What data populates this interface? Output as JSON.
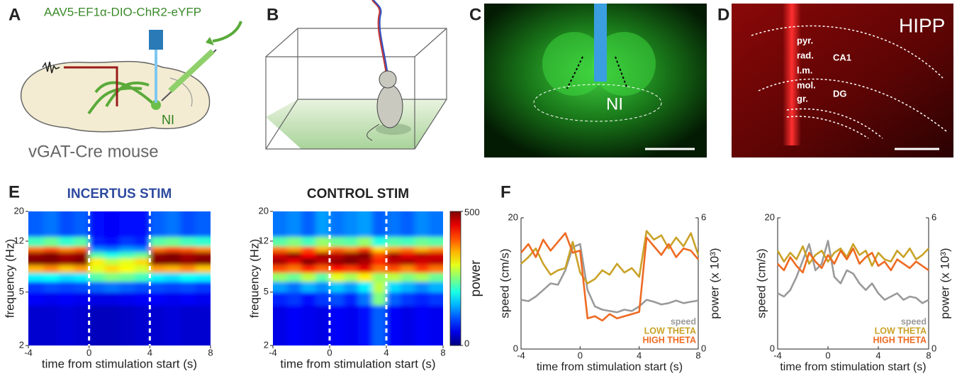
{
  "panels": {
    "A": {
      "label": "A",
      "construct": "AAV5-EF1α-DIO-ChR2-eYFP",
      "region": "NI",
      "mouse": "vGAT-Cre mouse"
    },
    "B": {
      "label": "B"
    },
    "C": {
      "label": "C",
      "region": "NI"
    },
    "D": {
      "label": "D",
      "region": "HIPP",
      "layers": [
        "pyr.",
        "rad.",
        "l.m.",
        "mol.",
        "gr."
      ],
      "areas": [
        "CA1",
        "DG"
      ]
    },
    "E": {
      "label": "E"
    },
    "F": {
      "label": "F"
    }
  },
  "chart_data": [
    {
      "type": "heatmap",
      "title": "INCERTUS STIM",
      "title_color": "#2e4a9e",
      "colormap": "jet",
      "x_label": "time from stimulation start (s)",
      "y_label": "frequency (Hz)",
      "xlim": [
        -4,
        8
      ],
      "xticks": [
        -4,
        0,
        4,
        8
      ],
      "ylim": [
        2,
        20
      ],
      "yticks": [
        2,
        5,
        12,
        20
      ],
      "log_y": true,
      "vlines": [
        0,
        4
      ],
      "zlim": [
        0,
        500
      ],
      "colorbar": false,
      "xbins": [
        -4,
        -3,
        -2,
        -1,
        0,
        1,
        2,
        3,
        4,
        5,
        6,
        7,
        8
      ],
      "ybins": [
        2,
        4,
        5,
        6,
        7,
        8,
        9,
        10,
        11,
        13,
        20
      ],
      "values": [
        [
          40,
          40,
          45,
          40,
          30,
          30,
          35,
          40,
          40,
          45,
          40,
          40
        ],
        [
          60,
          55,
          60,
          55,
          50,
          50,
          55,
          60,
          60,
          55,
          60,
          55
        ],
        [
          90,
          100,
          95,
          100,
          110,
          120,
          110,
          100,
          100,
          95,
          100,
          90
        ],
        [
          180,
          190,
          170,
          180,
          230,
          250,
          240,
          220,
          180,
          170,
          190,
          180
        ],
        [
          350,
          370,
          340,
          360,
          300,
          330,
          310,
          290,
          360,
          350,
          370,
          340
        ],
        [
          500,
          500,
          490,
          500,
          320,
          280,
          300,
          330,
          500,
          500,
          490,
          500
        ],
        [
          490,
          500,
          480,
          490,
          230,
          200,
          220,
          240,
          490,
          500,
          480,
          490
        ],
        [
          380,
          400,
          370,
          390,
          130,
          120,
          140,
          130,
          380,
          400,
          390,
          370
        ],
        [
          220,
          240,
          210,
          230,
          80,
          70,
          90,
          80,
          230,
          240,
          220,
          210
        ],
        [
          110,
          120,
          100,
          110,
          70,
          60,
          70,
          70,
          110,
          120,
          100,
          110
        ]
      ]
    },
    {
      "type": "heatmap",
      "title": "CONTROL STIM",
      "title_color": "#222222",
      "colormap": "jet",
      "x_label": "time from stimulation start (s)",
      "y_label": "frequency (Hz)",
      "xlim": [
        -4,
        8
      ],
      "xticks": [
        -4,
        0,
        4,
        8
      ],
      "ylim": [
        2,
        20
      ],
      "yticks": [
        2,
        5,
        12,
        20
      ],
      "log_y": true,
      "vlines": [
        0,
        4
      ],
      "zlim": [
        0,
        500
      ],
      "zticks": [
        0,
        500
      ],
      "zlabel": "power",
      "colorbar": true,
      "xbins": [
        -4,
        -3,
        -2,
        -1,
        0,
        1,
        2,
        3,
        4,
        5,
        6,
        7,
        8
      ],
      "ybins": [
        2,
        4,
        5,
        6,
        7,
        8,
        9,
        10,
        11,
        13,
        20
      ],
      "values": [
        [
          50,
          60,
          55,
          50,
          60,
          55,
          70,
          110,
          60,
          50,
          60,
          55
        ],
        [
          80,
          90,
          70,
          90,
          100,
          80,
          120,
          250,
          110,
          90,
          80,
          90
        ],
        [
          140,
          120,
          150,
          130,
          160,
          140,
          180,
          280,
          170,
          150,
          130,
          150
        ],
        [
          260,
          240,
          280,
          230,
          300,
          270,
          320,
          260,
          280,
          250,
          270,
          240
        ],
        [
          400,
          380,
          420,
          390,
          430,
          410,
          450,
          380,
          400,
          370,
          410,
          380
        ],
        [
          480,
          450,
          500,
          470,
          490,
          500,
          480,
          420,
          470,
          480,
          460,
          470
        ],
        [
          460,
          490,
          440,
          480,
          470,
          490,
          500,
          400,
          480,
          450,
          470,
          460
        ],
        [
          380,
          360,
          400,
          350,
          390,
          370,
          410,
          330,
          360,
          380,
          350,
          370
        ],
        [
          230,
          250,
          220,
          260,
          240,
          230,
          260,
          200,
          230,
          220,
          240,
          230
        ],
        [
          120,
          130,
          110,
          140,
          120,
          130,
          140,
          110,
          120,
          110,
          130,
          120
        ]
      ]
    },
    {
      "type": "line",
      "x_label": "time from stimulation start (s)",
      "y_label": "speed (cm/s)",
      "y2_label": "power (x 10³)",
      "xlim": [
        -4,
        8
      ],
      "xticks": [
        -4,
        0,
        4,
        8
      ],
      "ylim": [
        0,
        20
      ],
      "yticks": [
        0,
        20
      ],
      "y2lim": [
        0,
        6
      ],
      "y2ticks": [
        0,
        6
      ],
      "legend": "lower right",
      "x": [
        -4,
        -3.5,
        -3,
        -2.5,
        -2,
        -1.5,
        -1,
        -0.5,
        0,
        0.5,
        1,
        1.5,
        2,
        2.5,
        3,
        3.5,
        4,
        4.5,
        5,
        5.5,
        6,
        6.5,
        7,
        7.5,
        8
      ],
      "series": [
        {
          "name": "speed",
          "color": "#9a9a9a",
          "values": [
            7.5,
            7.3,
            8,
            9,
            10,
            9.8,
            12,
            15.5,
            16,
            9,
            6.5,
            6,
            5.8,
            5.6,
            6,
            5.8,
            6.5,
            7.5,
            7.2,
            6.8,
            7,
            7.4,
            7,
            7.2,
            7.4
          ]
        },
        {
          "name": "LOW THETA",
          "color": "#c9a227",
          "axis": "y2",
          "values": [
            3.9,
            4.2,
            4.6,
            3.9,
            3.4,
            3.6,
            3.7,
            4.9,
            3.5,
            3.0,
            3.2,
            3.6,
            3.4,
            3.9,
            3.5,
            3.7,
            3.3,
            5.4,
            5.0,
            5.2,
            4.6,
            5.1,
            4.7,
            5.3,
            4.3
          ]
        },
        {
          "name": "HIGH THETA",
          "color": "#ee6a22",
          "axis": "y2",
          "values": [
            4.4,
            4.8,
            4.2,
            5.0,
            4.5,
            4.9,
            5.3,
            4.4,
            4.5,
            1.4,
            1.5,
            1.3,
            1.6,
            1.4,
            1.5,
            1.6,
            1.7,
            5.1,
            4.7,
            4.3,
            4.8,
            4.2,
            4.6,
            4.5,
            4.1
          ]
        }
      ]
    },
    {
      "type": "line",
      "x_label": "time from stimulation start (s)",
      "y_label": "speed (cm/s)",
      "y2_label": "power (x 10³)",
      "xlim": [
        -4,
        8
      ],
      "xticks": [
        -4,
        0,
        4,
        8
      ],
      "ylim": [
        0,
        20
      ],
      "yticks": [
        0,
        20
      ],
      "y2lim": [
        0,
        6
      ],
      "y2ticks": [
        0,
        6
      ],
      "legend": "lower right",
      "x": [
        -4,
        -3.5,
        -3,
        -2.5,
        -2,
        -1.5,
        -1,
        -0.5,
        0,
        0.5,
        1,
        1.5,
        2,
        2.5,
        3,
        3.5,
        4,
        4.5,
        5,
        5.5,
        6,
        6.5,
        7,
        7.5,
        8
      ],
      "series": [
        {
          "name": "speed",
          "color": "#9a9a9a",
          "values": [
            8.5,
            8,
            9,
            11,
            13.5,
            16,
            12,
            13,
            16.5,
            11,
            10,
            12,
            11.5,
            10,
            9,
            10,
            8.5,
            7.5,
            8,
            8.5,
            7.5,
            8,
            7.8,
            7,
            7.5
          ]
        },
        {
          "name": "LOW THETA",
          "color": "#c9a227",
          "axis": "y2",
          "values": [
            4.5,
            4.0,
            4.4,
            4.1,
            4.7,
            3.9,
            4.3,
            4.5,
            4.0,
            4.4,
            4.6,
            4.2,
            4.8,
            4.3,
            4.5,
            3.8,
            4.4,
            4.1,
            4.0,
            4.5,
            4.2,
            4.6,
            4.1,
            4.3,
            4.6
          ]
        },
        {
          "name": "HIGH THETA",
          "color": "#ee6a22",
          "axis": "y2",
          "values": [
            3.9,
            3.6,
            4.2,
            3.8,
            3.5,
            4.4,
            4.0,
            3.7,
            4.3,
            3.9,
            4.5,
            4.1,
            4.6,
            3.9,
            4.2,
            4.4,
            3.8,
            4.0,
            3.6,
            4.1,
            3.9,
            3.7,
            4.0,
            3.8,
            3.6
          ]
        }
      ]
    }
  ]
}
